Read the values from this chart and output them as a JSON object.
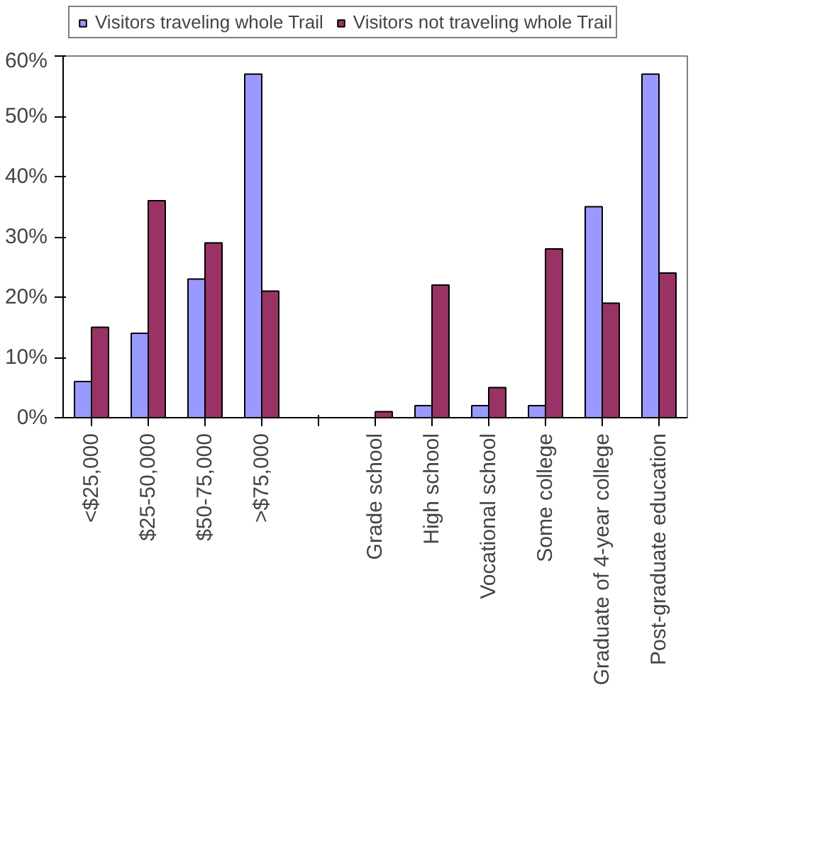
{
  "chart_data": {
    "type": "bar",
    "categories": [
      "<$25,000",
      "$25-50,000",
      "$50-75,000",
      ">$75,000",
      null,
      "Grade school",
      "High school",
      "Vocational school",
      "Some college",
      "Graduate of 4-year college",
      "Post-graduate education"
    ],
    "series": [
      {
        "name": "Visitors traveling whole Trail",
        "color": "#9999ff",
        "values": [
          6,
          14,
          23,
          57,
          null,
          0,
          2,
          2,
          2,
          35,
          57
        ]
      },
      {
        "name": "Visitors not traveling whole Trail",
        "color": "#993366",
        "values": [
          15,
          36,
          29,
          21,
          null,
          1,
          22,
          5,
          28,
          19,
          24
        ]
      }
    ],
    "ylim": [
      0,
      60
    ],
    "yticks": [
      {
        "value": 0,
        "label": "0%"
      },
      {
        "value": 10,
        "label": "10%"
      },
      {
        "value": 20,
        "label": "20%"
      },
      {
        "value": 30,
        "label": "30%"
      },
      {
        "value": 40,
        "label": "40%"
      },
      {
        "value": 50,
        "label": "50%"
      },
      {
        "value": 60,
        "label": "60%"
      }
    ],
    "grid": false,
    "legend": "top"
  }
}
